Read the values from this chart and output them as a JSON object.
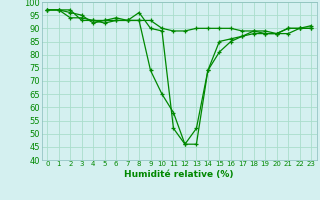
{
  "xlabel": "Humidité relative (%)",
  "ylabel": "",
  "background_color": "#d4f0f0",
  "grid_color": "#aaddcc",
  "line_color": "#008800",
  "marker_color": "#008800",
  "xlim": [
    -0.5,
    23.5
  ],
  "ylim": [
    40,
    100
  ],
  "yticks": [
    40,
    45,
    50,
    55,
    60,
    65,
    70,
    75,
    80,
    85,
    90,
    95,
    100
  ],
  "xticks": [
    0,
    1,
    2,
    3,
    4,
    5,
    6,
    7,
    8,
    9,
    10,
    11,
    12,
    13,
    14,
    15,
    16,
    17,
    18,
    19,
    20,
    21,
    22,
    23
  ],
  "series": [
    [
      97,
      97,
      94,
      94,
      93,
      92,
      93,
      93,
      93,
      74,
      65,
      58,
      46,
      46,
      74,
      81,
      85,
      87,
      88,
      88,
      88,
      90,
      90,
      90
    ],
    [
      97,
      97,
      97,
      93,
      93,
      93,
      93,
      93,
      93,
      93,
      90,
      89,
      89,
      90,
      90,
      90,
      90,
      89,
      89,
      89,
      88,
      88,
      90,
      91
    ],
    [
      97,
      97,
      96,
      95,
      92,
      93,
      94,
      93,
      96,
      90,
      89,
      52,
      46,
      52,
      74,
      85,
      86,
      87,
      89,
      88,
      88,
      90,
      90,
      90
    ]
  ]
}
